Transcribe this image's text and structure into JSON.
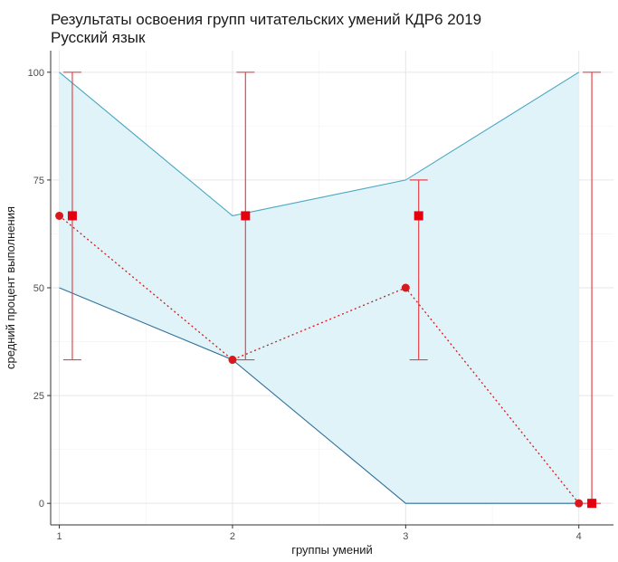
{
  "chart_data": {
    "type": "line",
    "title_lines": [
      "Результаты освоения групп читательских умений КДР6 2019",
      "Русский язык"
    ],
    "xlabel": "группы умений",
    "ylabel": "средний процент выполнения",
    "x": [
      1,
      2,
      3,
      4
    ],
    "x_ticks": [
      "1",
      "2",
      "3",
      "4"
    ],
    "y_ticks": [
      "0",
      "25",
      "50",
      "75",
      "100"
    ],
    "xlim": [
      0.95,
      4.2
    ],
    "ylim": [
      -5,
      105
    ],
    "grid": true,
    "band": {
      "lower": [
        50,
        33.3,
        0,
        0
      ],
      "upper": [
        100,
        66.7,
        75,
        100
      ]
    },
    "series": [
      {
        "type": "dotted-line-points",
        "values": [
          66.7,
          33.3,
          50,
          0
        ],
        "color": "#d7191c"
      },
      {
        "type": "errorbar",
        "x": [
          1.075,
          2.075,
          3.075,
          4.075
        ],
        "mean": [
          66.7,
          66.7,
          66.7,
          0
        ],
        "low": [
          33.3,
          33.3,
          33.3,
          0
        ],
        "high": [
          100,
          100,
          75,
          100
        ],
        "color": "#e31a1c"
      }
    ],
    "colors": {
      "band_fill": "#dff3f8",
      "upper_line": "#4aa6c2",
      "lower_line": "#2f6f99",
      "points": "#d7191c",
      "errorbar": "#e8434a"
    }
  }
}
